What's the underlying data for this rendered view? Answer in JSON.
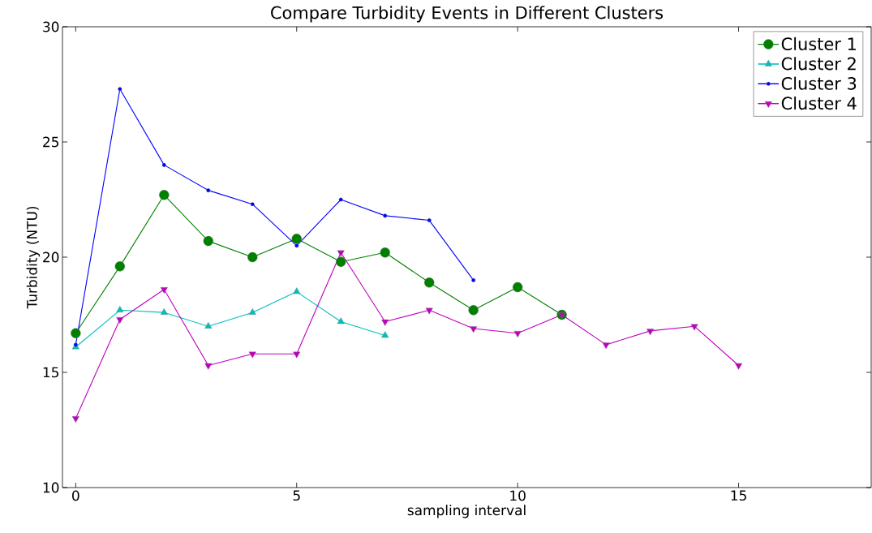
{
  "chart_data": {
    "type": "line",
    "title": "Compare Turbidity Events in Different Clusters",
    "xlabel": "sampling interval",
    "ylabel": "Turbidity (NTU)",
    "series": [
      {
        "name": "Cluster 1",
        "color": "#008000",
        "marker": "circle",
        "x": [
          0,
          1,
          2,
          3,
          4,
          5,
          6,
          7,
          8,
          9,
          10,
          11
        ],
        "values": [
          16.7,
          19.6,
          22.7,
          20.7,
          20.0,
          20.8,
          19.8,
          20.2,
          18.9,
          17.7,
          18.7,
          17.5
        ]
      },
      {
        "name": "Cluster 2",
        "color": "#00bfbf",
        "marker": "triangle",
        "x": [
          0,
          1,
          2,
          3,
          4,
          5,
          6,
          7
        ],
        "values": [
          16.1,
          17.7,
          17.6,
          17.0,
          17.6,
          18.5,
          17.2,
          16.6
        ]
      },
      {
        "name": "Cluster 3",
        "color": "#0000ff",
        "marker": "point",
        "x": [
          0,
          1,
          2,
          3,
          4,
          5,
          6,
          7,
          8,
          9
        ],
        "values": [
          16.2,
          27.3,
          24.0,
          22.9,
          22.3,
          20.5,
          22.5,
          21.8,
          21.6,
          19.0
        ]
      },
      {
        "name": "Cluster 4",
        "color": "#bf00bf",
        "marker": "triangle_down",
        "x": [
          0,
          1,
          2,
          3,
          4,
          5,
          6,
          7,
          8,
          9,
          10,
          11,
          12,
          13,
          14,
          15
        ],
        "values": [
          13.0,
          17.3,
          18.6,
          15.3,
          15.8,
          15.8,
          20.2,
          17.2,
          17.7,
          16.9,
          16.7,
          17.5,
          16.2,
          16.8,
          17.0,
          15.3
        ]
      }
    ],
    "xlim": [
      -0.3,
      18
    ],
    "ylim": [
      10,
      30
    ],
    "xticks": [
      0,
      5,
      10,
      15
    ],
    "yticks": [
      10,
      15,
      20,
      25,
      30
    ],
    "legend": "top right",
    "line_style": "solid"
  }
}
